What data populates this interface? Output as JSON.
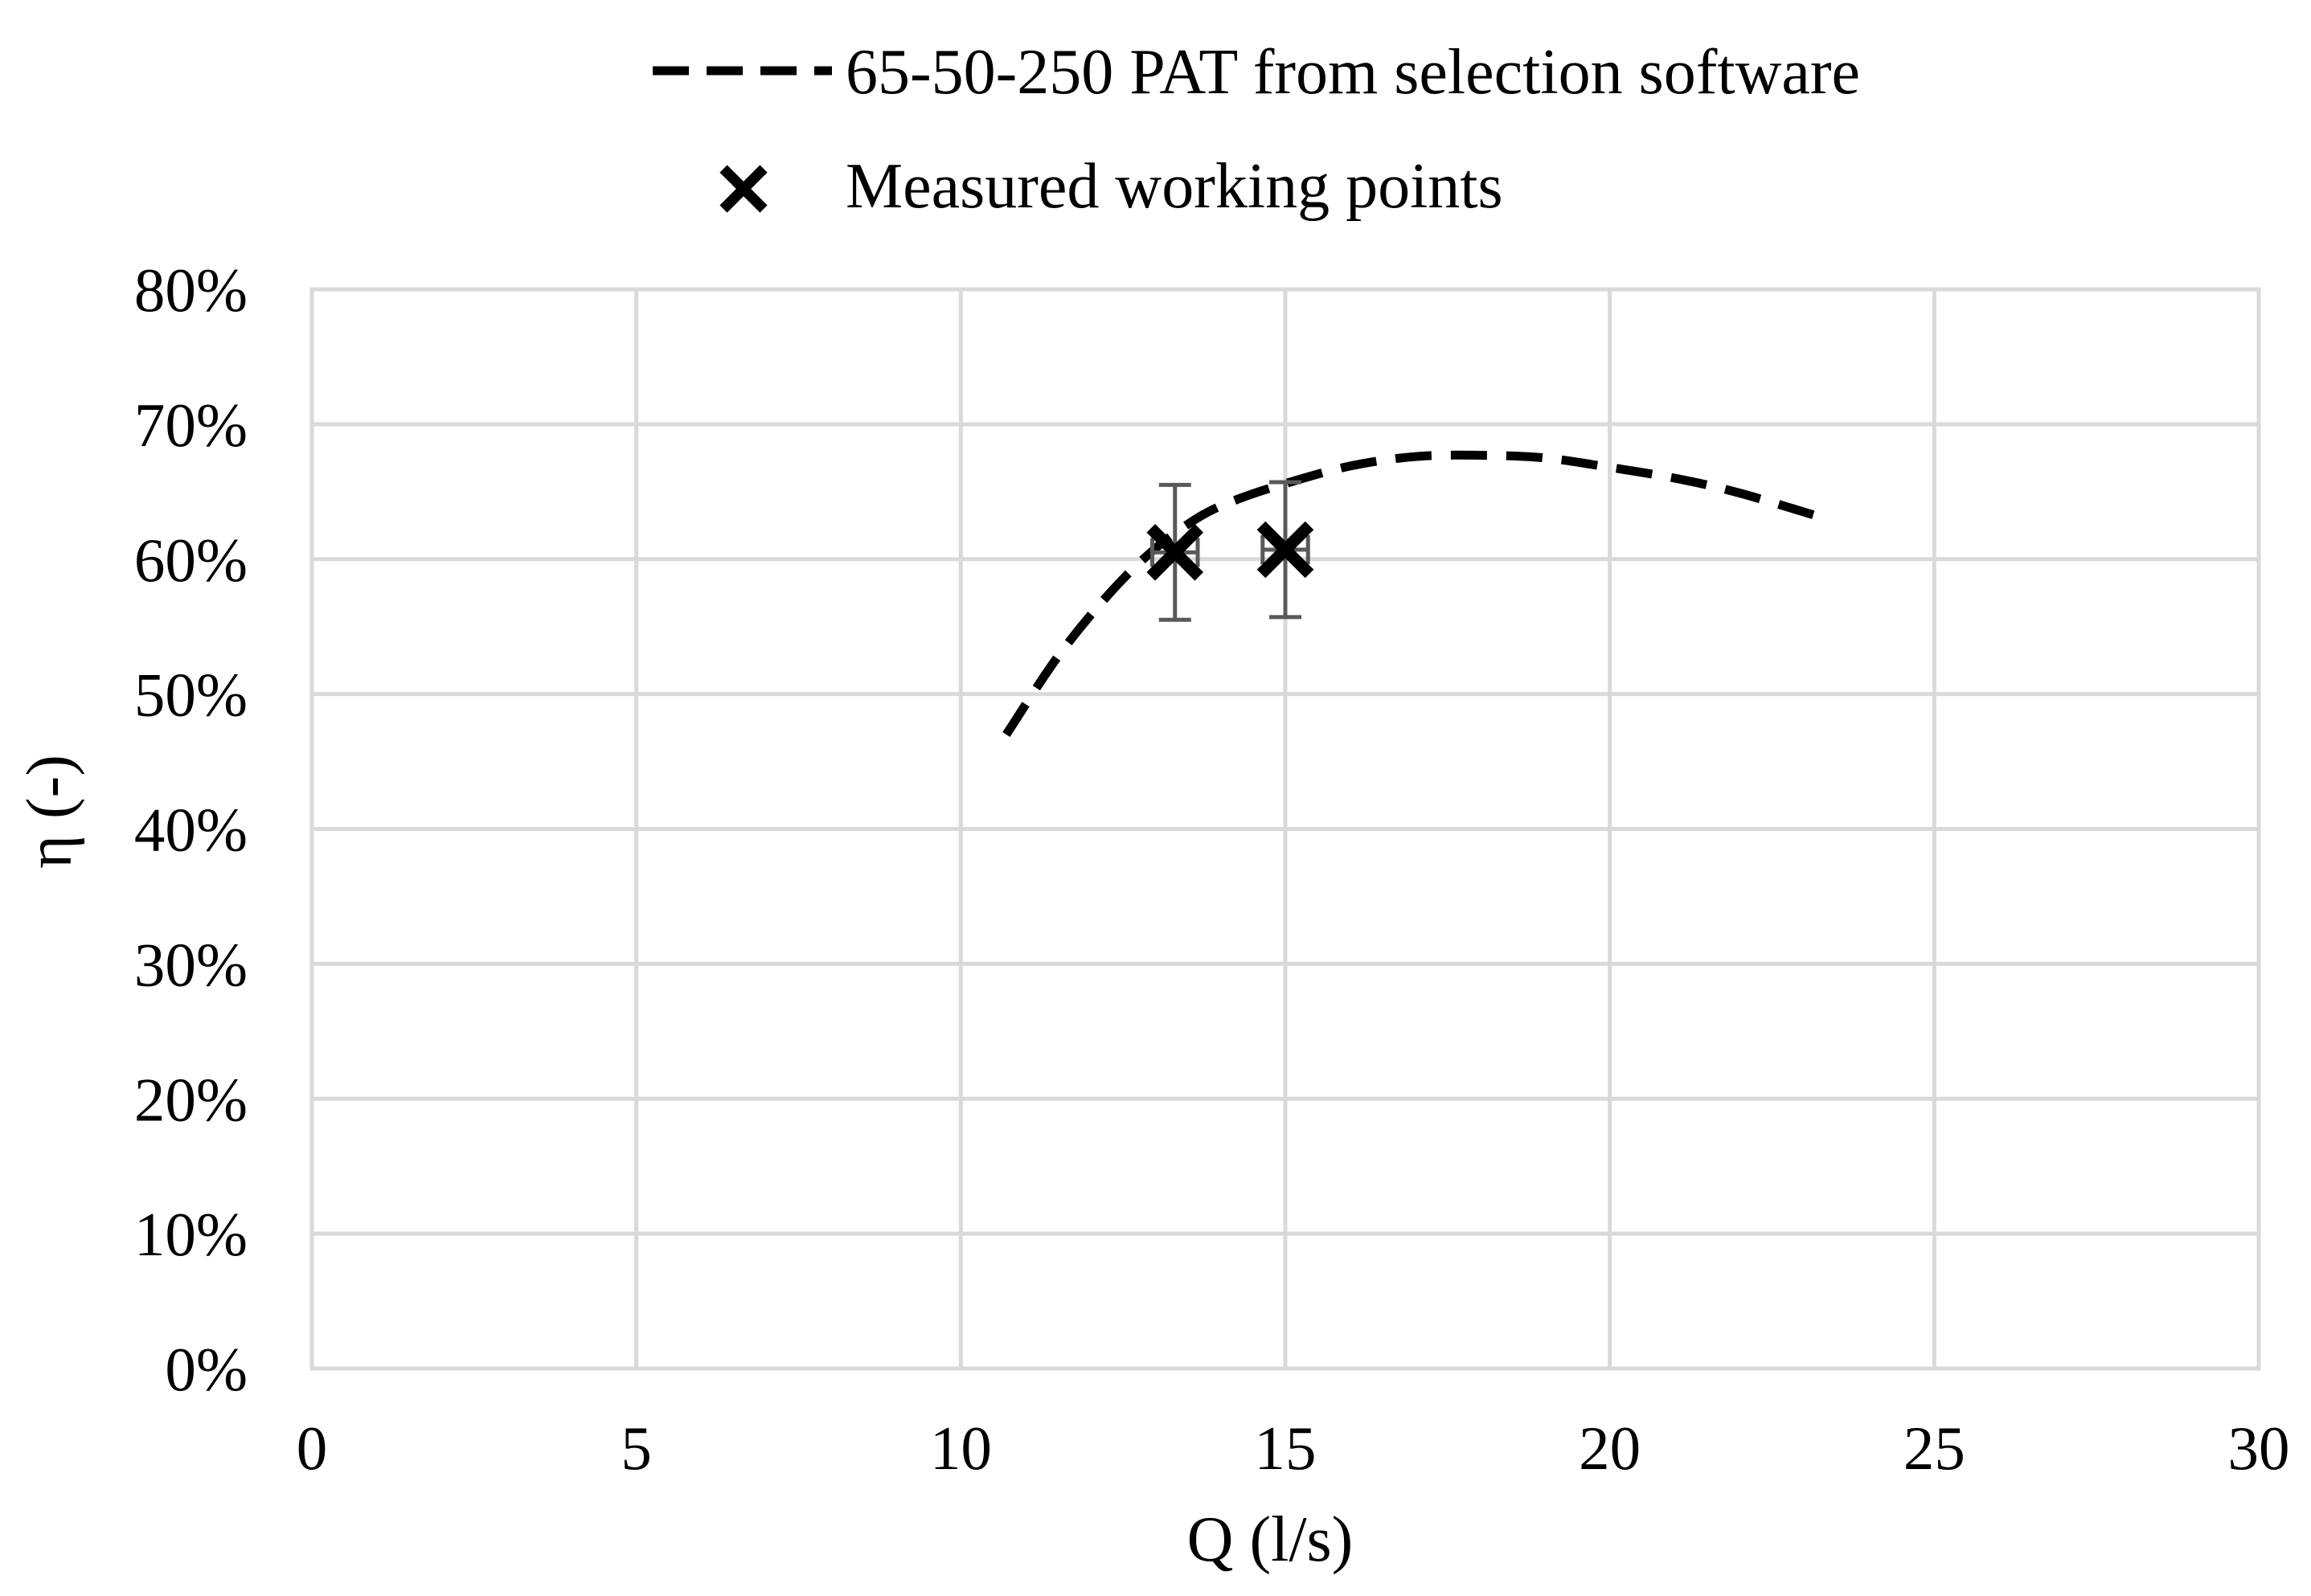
{
  "chart_data": {
    "type": "line",
    "title": "",
    "xlabel": "Q (l/s)",
    "ylabel": "η (-)",
    "xlim": [
      0,
      30
    ],
    "ylim": [
      0,
      0.8
    ],
    "x_ticks": [
      0,
      5,
      10,
      15,
      20,
      25,
      30
    ],
    "y_ticks": [
      0,
      0.1,
      0.2,
      0.3,
      0.4,
      0.5,
      0.6,
      0.7,
      0.8
    ],
    "x_tick_labels": [
      "0",
      "5",
      "10",
      "15",
      "20",
      "25",
      "30"
    ],
    "y_tick_labels": [
      "0%",
      "10%",
      "20%",
      "30%",
      "40%",
      "50%",
      "60%",
      "70%",
      "80%"
    ],
    "grid": true,
    "legend_position": "top",
    "series": [
      {
        "name": "65-50-250 PAT from selection software",
        "style": "dashed-line",
        "color": "#000000",
        "x": [
          10.7,
          11.5,
          12.3,
          13.0,
          13.7,
          14.3,
          15.0,
          16.0,
          17.0,
          18.0,
          19.0,
          20.0,
          21.0,
          22.0,
          23.4
        ],
        "y": [
          0.47,
          0.528,
          0.575,
          0.608,
          0.632,
          0.645,
          0.656,
          0.669,
          0.676,
          0.677,
          0.675,
          0.668,
          0.66,
          0.649,
          0.629
        ]
      },
      {
        "name": "Measured working points",
        "style": "x-marker",
        "color": "#000000",
        "x": [
          13.3,
          15.0
        ],
        "y": [
          0.605,
          0.607
        ],
        "y_error": [
          0.05,
          0.05
        ],
        "x_error": [
          0.35,
          0.35
        ],
        "error_bar_color": "#595959"
      }
    ]
  }
}
